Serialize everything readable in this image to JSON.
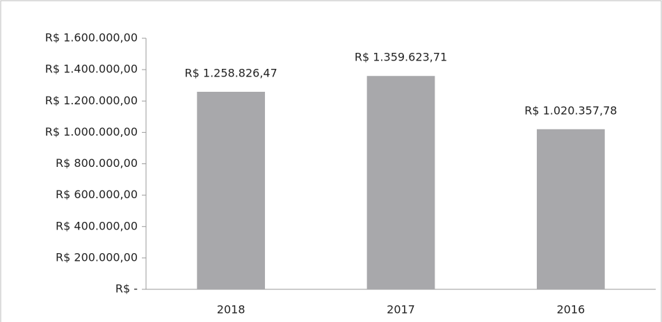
{
  "chart_data": {
    "type": "bar",
    "categories": [
      "2018",
      "2017",
      "2016"
    ],
    "values": [
      1258826.47,
      1359623.71,
      1020357.78
    ],
    "value_labels": [
      "R$ 1.258.826,47",
      "R$ 1.359.623,71",
      "R$ 1.020.357,78"
    ],
    "color": "#a8a8ab",
    "ylim": [
      0,
      1600000
    ],
    "yticks": [
      {
        "value": 0,
        "label": "R$ -"
      },
      {
        "value": 200000,
        "label": "R$ 200.000,00"
      },
      {
        "value": 400000,
        "label": "R$ 400.000,00"
      },
      {
        "value": 600000,
        "label": "R$ 600.000,00"
      },
      {
        "value": 800000,
        "label": "R$ 800.000,00"
      },
      {
        "value": 1000000,
        "label": "R$ 1.000.000,00"
      },
      {
        "value": 1200000,
        "label": "R$ 1.200.000,00"
      },
      {
        "value": 1400000,
        "label": "R$ 1.400.000,00"
      },
      {
        "value": 1600000,
        "label": "R$ 1.600.000,00"
      }
    ],
    "grid": false
  }
}
